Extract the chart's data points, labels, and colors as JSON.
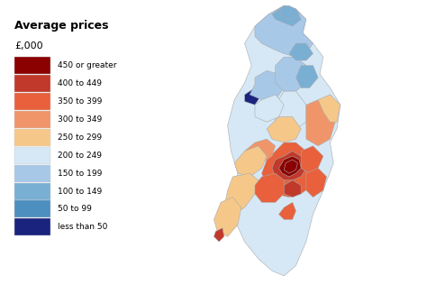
{
  "title": "Average prices",
  "subtitle": "£,000",
  "legend_labels": [
    "450 or greater",
    "400 to 449",
    "350 to 399",
    "300 to 349",
    "250 to 299",
    "200 to 249",
    "150 to 199",
    "100 to 149",
    "50 to 99",
    "less than 50"
  ],
  "legend_colors": [
    "#8B0000",
    "#C0392B",
    "#E8603C",
    "#F0956A",
    "#F5C88A",
    "#D6E8F5",
    "#A8C8E8",
    "#7AAFD4",
    "#4D8FBF",
    "#1A237E"
  ],
  "background_color": "#ffffff",
  "fig_width": 4.74,
  "fig_height": 3.16,
  "dpi": 100,
  "legend_title_fontsize": 9,
  "legend_subtitle_fontsize": 8,
  "legend_label_fontsize": 6.5,
  "map_edge_color": "#bbbbbb",
  "map_edge_width": 0.3
}
